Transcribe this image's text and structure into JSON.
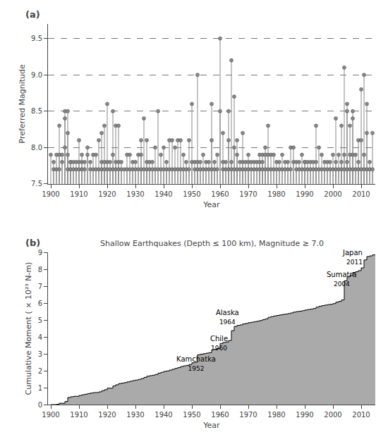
{
  "chart_data": [
    {
      "type": "stem",
      "title": "(a)",
      "xlabel": "Year",
      "ylabel": "Preferred Magnitude",
      "color": "#888888",
      "marker": "circle",
      "grid": "y",
      "xlim": [
        1899,
        2015
      ],
      "xticks": [
        1900,
        1910,
        1920,
        1930,
        1940,
        1950,
        1960,
        1970,
        1980,
        1990,
        2000,
        2010
      ],
      "ylim": [
        7.5,
        9.7
      ],
      "yticks": [
        7.5,
        {
          "value": 8.0,
          "label": "8.0"
        },
        8.5,
        {
          "value": 9.0,
          "label": "9.0"
        },
        9.5
      ],
      "x": [
        1900,
        1901,
        1901,
        1902,
        1902,
        1903,
        1903,
        1903,
        1904,
        1904,
        1905,
        1905,
        1905,
        1906,
        1906,
        1906,
        1906,
        1907,
        1907,
        1907,
        1908,
        1908,
        1909,
        1909,
        1910,
        1910,
        1910,
        1911,
        1911,
        1911,
        1912,
        1912,
        1913,
        1913,
        1914,
        1914,
        1915,
        1915,
        1916,
        1916,
        1917,
        1917,
        1918,
        1918,
        1918,
        1919,
        1919,
        1919,
        1920,
        1920,
        1920,
        1921,
        1921,
        1922,
        1922,
        1922,
        1923,
        1923,
        1923,
        1924,
        1924,
        1924,
        1925,
        1925,
        1926,
        1927,
        1927,
        1928,
        1928,
        1929,
        1929,
        1930,
        1930,
        1931,
        1931,
        1932,
        1932,
        1932,
        1933,
        1933,
        1934,
        1934,
        1934,
        1935,
        1935,
        1936,
        1936,
        1937,
        1937,
        1938,
        1938,
        1939,
        1939,
        1940,
        1940,
        1941,
        1941,
        1942,
        1942,
        1943,
        1943,
        1944,
        1944,
        1945,
        1945,
        1946,
        1946,
        1947,
        1947,
        1948,
        1948,
        1949,
        1949,
        1950,
        1950,
        1951,
        1951,
        1952,
        1952,
        1952,
        1953,
        1953,
        1954,
        1954,
        1955,
        1955,
        1956,
        1956,
        1957,
        1957,
        1957,
        1958,
        1958,
        1959,
        1959,
        1960,
        1960,
        1961,
        1961,
        1961,
        1962,
        1962,
        1963,
        1963,
        1963,
        1964,
        1964,
        1964,
        1965,
        1965,
        1965,
        1966,
        1966,
        1966,
        1967,
        1967,
        1968,
        1968,
        1968,
        1969,
        1969,
        1970,
        1970,
        1970,
        1971,
        1971,
        1972,
        1972,
        1973,
        1973,
        1974,
        1974,
        1974,
        1975,
        1975,
        1975,
        1976,
        1976,
        1976,
        1977,
        1977,
        1977,
        1978,
        1978,
        1979,
        1979,
        1980,
        1980,
        1981,
        1981,
        1982,
        1982,
        1983,
        1983,
        1984,
        1984,
        1985,
        1985,
        1986,
        1986,
        1987,
        1987,
        1988,
        1988,
        1989,
        1989,
        1990,
        1990,
        1990,
        1991,
        1991,
        1992,
        1992,
        1993,
        1993,
        1994,
        1994,
        1994,
        1995,
        1995,
        1996,
        1996,
        1997,
        1997,
        1998,
        1998,
        1999,
        1999,
        2000,
        2000,
        2001,
        2001,
        2001,
        2002,
        2002,
        2003,
        2003,
        2003,
        2004,
        2004,
        2004,
        2005,
        2005,
        2005,
        2005,
        2006,
        2006,
        2006,
        2007,
        2007,
        2007,
        2007,
        2008,
        2008,
        2009,
        2009,
        2009,
        2010,
        2010,
        2010,
        2011,
        2011,
        2011,
        2012,
        2012,
        2012,
        2013,
        2013,
        2014,
        2014
      ],
      "values": [
        7.9,
        7.7,
        7.8,
        7.9,
        7.7,
        7.9,
        8.3,
        7.7,
        7.9,
        7.8,
        8.0,
        8.4,
        8.5,
        8.5,
        8.2,
        7.9,
        7.7,
        7.8,
        7.8,
        7.7,
        7.8,
        7.7,
        7.7,
        7.8,
        7.8,
        8.1,
        7.7,
        7.9,
        7.8,
        7.7,
        7.8,
        7.7,
        7.9,
        8.0,
        7.8,
        7.7,
        7.9,
        7.7,
        7.9,
        7.7,
        8.1,
        7.7,
        8.2,
        7.8,
        7.7,
        7.8,
        8.3,
        7.7,
        7.8,
        8.6,
        7.7,
        7.7,
        7.8,
        8.5,
        7.9,
        7.7,
        7.7,
        8.3,
        7.8,
        7.8,
        8.3,
        7.7,
        7.8,
        7.7,
        7.7,
        7.9,
        7.7,
        7.9,
        7.7,
        7.8,
        7.7,
        7.7,
        7.8,
        7.9,
        7.7,
        7.9,
        8.1,
        7.7,
        8.4,
        7.7,
        8.1,
        7.8,
        7.7,
        7.7,
        7.8,
        7.7,
        7.8,
        8.0,
        7.7,
        8.5,
        7.7,
        7.9,
        7.7,
        8.0,
        7.7,
        7.8,
        7.7,
        8.1,
        7.7,
        8.1,
        7.7,
        8.0,
        7.7,
        8.1,
        7.7,
        8.1,
        7.7,
        7.9,
        7.7,
        7.8,
        7.7,
        8.1,
        7.7,
        8.6,
        7.8,
        7.8,
        7.7,
        9.0,
        7.8,
        7.7,
        7.8,
        7.7,
        7.9,
        7.7,
        7.8,
        7.7,
        7.8,
        7.7,
        8.6,
        8.1,
        7.7,
        7.8,
        7.7,
        7.9,
        7.7,
        9.5,
        8.5,
        8.2,
        7.8,
        7.7,
        7.8,
        7.7,
        8.5,
        8.1,
        7.7,
        9.2,
        7.8,
        7.7,
        8.7,
        8.0,
        7.7,
        8.1,
        7.9,
        7.7,
        7.8,
        7.7,
        8.2,
        7.8,
        7.7,
        7.8,
        7.7,
        7.8,
        7.9,
        7.7,
        7.8,
        7.7,
        7.8,
        7.7,
        7.8,
        7.7,
        7.9,
        7.8,
        7.7,
        7.8,
        7.9,
        7.7,
        7.9,
        8.0,
        7.7,
        8.3,
        7.9,
        7.7,
        7.9,
        7.7,
        7.9,
        7.7,
        7.8,
        7.7,
        7.7,
        7.8,
        7.9,
        7.7,
        7.8,
        7.7,
        7.8,
        7.7,
        8.0,
        7.7,
        8.0,
        7.8,
        7.7,
        7.8,
        7.8,
        7.7,
        7.9,
        7.7,
        7.8,
        7.8,
        7.7,
        7.8,
        7.7,
        7.8,
        7.7,
        7.8,
        7.7,
        8.3,
        7.8,
        7.7,
        8.0,
        7.7,
        7.9,
        7.7,
        7.8,
        7.7,
        7.8,
        7.7,
        7.7,
        7.8,
        7.9,
        7.7,
        8.4,
        7.8,
        7.7,
        7.9,
        7.7,
        8.3,
        7.8,
        7.7,
        9.1,
        7.9,
        7.7,
        8.6,
        8.5,
        7.8,
        7.7,
        7.9,
        8.3,
        7.7,
        8.5,
        8.4,
        7.9,
        7.7,
        7.9,
        7.7,
        8.1,
        7.8,
        7.7,
        8.8,
        8.1,
        7.7,
        9.0,
        7.9,
        7.7,
        8.6,
        8.2,
        7.7,
        7.8,
        7.7,
        8.2,
        7.7
      ]
    },
    {
      "type": "area",
      "title": "(b)",
      "subtitle": "Shallow Earthquakes (Depth ≤ 100 km), Magnitude ≥ 7.0",
      "xlabel": "Year",
      "ylabel": "Cumulative Moment ( × 10²³ N-m)",
      "color": "#aaaaaa",
      "line_style": "step",
      "grid": false,
      "xlim": [
        1899,
        2015
      ],
      "xticks": [
        1900,
        1910,
        1920,
        1930,
        1940,
        1950,
        1960,
        1970,
        1980,
        1990,
        2000,
        2010
      ],
      "ylim": [
        0,
        9
      ],
      "yticks": [
        0,
        1,
        2,
        3,
        4,
        5,
        6,
        7,
        8,
        9
      ],
      "x": [
        1900,
        1902,
        1903,
        1905,
        1906,
        1907,
        1908,
        1910,
        1911,
        1912,
        1913,
        1914,
        1915,
        1917,
        1918,
        1919,
        1920,
        1922,
        1923,
        1924,
        1925,
        1926,
        1927,
        1928,
        1929,
        1930,
        1931,
        1932,
        1933,
        1934,
        1935,
        1936,
        1937,
        1938,
        1939,
        1940,
        1941,
        1942,
        1943,
        1944,
        1945,
        1946,
        1947,
        1948,
        1949,
        1950,
        1951,
        1952,
        1953,
        1954,
        1955,
        1956,
        1957,
        1958,
        1959,
        1960,
        1961,
        1962,
        1963,
        1964,
        1965,
        1966,
        1967,
        1968,
        1969,
        1970,
        1971,
        1972,
        1973,
        1974,
        1975,
        1976,
        1977,
        1978,
        1979,
        1980,
        1981,
        1982,
        1983,
        1984,
        1985,
        1986,
        1987,
        1988,
        1989,
        1990,
        1991,
        1992,
        1993,
        1994,
        1995,
        1996,
        1997,
        1998,
        1999,
        2000,
        2001,
        2002,
        2003,
        2004,
        2005,
        2006,
        2007,
        2008,
        2009,
        2010,
        2011,
        2012,
        2013,
        2014,
        2015
      ],
      "values": [
        0.0,
        0.02,
        0.08,
        0.18,
        0.42,
        0.46,
        0.49,
        0.54,
        0.58,
        0.61,
        0.65,
        0.68,
        0.71,
        0.75,
        0.82,
        0.88,
        0.97,
        1.1,
        1.17,
        1.24,
        1.27,
        1.3,
        1.34,
        1.38,
        1.42,
        1.45,
        1.49,
        1.54,
        1.61,
        1.68,
        1.71,
        1.74,
        1.78,
        1.86,
        1.91,
        1.96,
        1.99,
        2.04,
        2.09,
        2.14,
        2.19,
        2.25,
        2.29,
        2.32,
        2.37,
        2.47,
        2.5,
        2.95,
        2.98,
        3.01,
        3.04,
        3.07,
        3.24,
        3.27,
        3.31,
        3.61,
        3.67,
        3.7,
        3.79,
        4.37,
        4.62,
        4.68,
        4.71,
        4.77,
        4.8,
        4.84,
        4.87,
        4.9,
        4.93,
        4.97,
        5.02,
        5.07,
        5.16,
        5.2,
        5.24,
        5.27,
        5.3,
        5.33,
        5.35,
        5.38,
        5.42,
        5.47,
        5.5,
        5.52,
        5.55,
        5.59,
        5.62,
        5.65,
        5.68,
        5.76,
        5.81,
        5.85,
        5.88,
        5.91,
        5.93,
        5.97,
        6.06,
        6.1,
        6.19,
        7.32,
        7.55,
        7.65,
        7.81,
        7.85,
        7.92,
        8.08,
        8.55,
        8.75,
        8.79,
        8.85,
        8.85
      ],
      "annotations": [
        {
          "text": "Kamchatka",
          "year_text": "1952",
          "x": 1951.5,
          "y": 2.42,
          "align": "center"
        },
        {
          "text": "Chile",
          "year_text": "1960",
          "x": 1959.5,
          "y": 3.62,
          "align": "center"
        },
        {
          "text": "Alaska",
          "year_text": "1964",
          "x": 1962.5,
          "y": 5.18,
          "align": "center"
        },
        {
          "text": "Sumatra",
          "year_text": "2004",
          "x": 2003.0,
          "y": 7.42,
          "align": "center"
        },
        {
          "text": "Japan",
          "year_text": "2011",
          "x": 2011.0,
          "y": 8.72,
          "align": "right"
        }
      ]
    }
  ]
}
